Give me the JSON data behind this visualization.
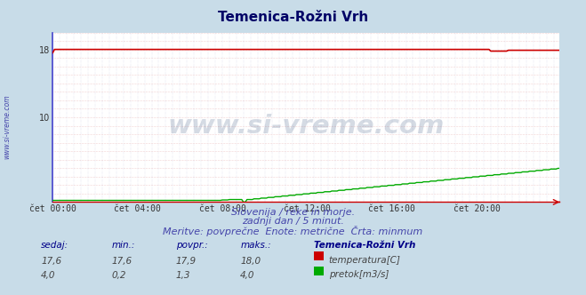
{
  "title": "Temenica-Rožni Vrh",
  "fig_bg_color": "#c8dce8",
  "plot_bg_color": "#ffffff",
  "x_labels": [
    "čet 00:00",
    "čet 04:00",
    "čet 08:00",
    "čet 12:00",
    "čet 16:00",
    "čet 20:00"
  ],
  "x_tick_pos": [
    0,
    48,
    96,
    144,
    192,
    240
  ],
  "n_points": 288,
  "y_min": 0,
  "y_max": 20,
  "y_ticks": [
    10,
    18
  ],
  "temp_color": "#cc0000",
  "flow_color": "#00aa00",
  "grid_h_color": "#dd8888",
  "grid_v_color": "#aaaacc",
  "left_spine_color": "#4444cc",
  "bottom_spine_color": "#cc0000",
  "subtitle1": "Slovenija / reke in morje.",
  "subtitle2": "zadnji dan / 5 minut.",
  "subtitle3": "Meritve: povprečne  Enote: metrične  Črta: minmum",
  "subtitle_color": "#4444aa",
  "col_sedaj": "sedaj:",
  "col_min": "min.:",
  "col_povpr": "povpr.:",
  "col_maks": "maks.:",
  "legend_title": "Temenica-Rožni Vrh",
  "label_temp": "temperatura[C]",
  "label_flow": "pretok[m3/s]",
  "row1_vals": [
    "17,6",
    "17,6",
    "17,9",
    "18,0"
  ],
  "row2_vals": [
    "4,0",
    "0,2",
    "1,3",
    "4,0"
  ],
  "watermark": "www.si-vreme.com",
  "left_label": "www.si-vreme.com",
  "title_color": "#000066",
  "header_color": "#000088",
  "val_color": "#444444",
  "temp_box_color": "#cc0000",
  "flow_box_color": "#00aa00"
}
